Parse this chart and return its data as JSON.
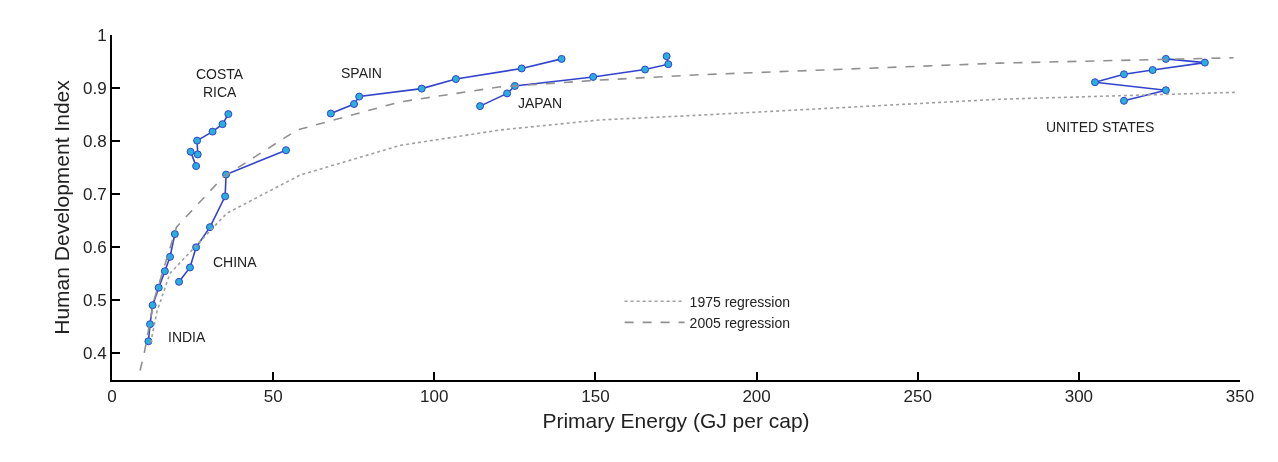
{
  "chart_data": {
    "type": "line",
    "xlabel": "Primary Energy (GJ per cap)",
    "ylabel": "Human Development Index",
    "xlim": [
      0,
      350
    ],
    "ylim": [
      0.35,
      1
    ],
    "xticks": [
      0,
      50,
      100,
      150,
      200,
      250,
      300,
      350
    ],
    "yticks": [
      0.4,
      0.5,
      0.6,
      0.7,
      0.8,
      0.9,
      1
    ],
    "grid": false,
    "legend": "bottom",
    "marker": "circle",
    "series": [
      {
        "name": "INDIA",
        "color": "#3344cc",
        "x": [
          11.3,
          11.8,
          12.6,
          14.5,
          16.4,
          18.0,
          19.5
        ],
        "values": [
          0.423,
          0.455,
          0.491,
          0.524,
          0.555,
          0.582,
          0.625
        ]
      },
      {
        "name": "CHINA",
        "color": "#3344cc",
        "x": [
          20.8,
          24.2,
          26.1,
          30.4,
          35.1,
          35.4,
          54.0
        ],
        "values": [
          0.535,
          0.562,
          0.6,
          0.638,
          0.696,
          0.737,
          0.783
        ]
      },
      {
        "name": "COSTA\nRICA",
        "color": "#3344cc",
        "x": [
          26.1,
          24.4,
          26.6,
          26.4,
          31.2,
          34.3,
          36.1
        ],
        "values": [
          0.753,
          0.78,
          0.775,
          0.801,
          0.818,
          0.832,
          0.851
        ]
      },
      {
        "name": "SPAIN",
        "color": "#3344cc",
        "x": [
          67.9,
          75.1,
          76.7,
          96.1,
          106.7,
          127.1,
          139.5
        ],
        "values": [
          0.852,
          0.87,
          0.884,
          0.899,
          0.917,
          0.937,
          0.955
        ]
      },
      {
        "name": "JAPAN",
        "color": "#3344cc",
        "x": [
          114.2,
          122.6,
          125.0,
          149.3,
          165.4,
          172.6,
          172.1
        ],
        "values": [
          0.866,
          0.89,
          0.904,
          0.921,
          0.935,
          0.945,
          0.96
        ]
      },
      {
        "name": "UNITED STATES",
        "color": "#3344cc",
        "x": [
          314.0,
          327.0,
          305.0,
          314.0,
          322.9,
          339.1,
          327.0
        ],
        "values": [
          0.876,
          0.896,
          0.911,
          0.926,
          0.934,
          0.948,
          0.955
        ]
      },
      {
        "name": "1975 regression",
        "color": "#a0a0a0",
        "marker": "none",
        "line_style": "dotted",
        "x": [
          12,
          14,
          18,
          35.6,
          58.3,
          89.4,
          120.4,
          151.4,
          182.4,
          275.5,
          349
        ],
        "values": [
          0.42,
          0.48,
          0.551,
          0.664,
          0.736,
          0.792,
          0.821,
          0.84,
          0.849,
          0.879,
          0.892
        ]
      },
      {
        "name": "2005 regression",
        "color": "#909090",
        "marker": "none",
        "line_style": "dashed",
        "x": [
          8.7,
          10,
          13,
          20,
          34.4,
          57.4,
          89.4,
          120,
          151,
          182,
          275.5,
          348
        ],
        "values": [
          0.368,
          0.4,
          0.5,
          0.638,
          0.732,
          0.821,
          0.874,
          0.902,
          0.915,
          0.925,
          0.947,
          0.957
        ]
      }
    ]
  }
}
